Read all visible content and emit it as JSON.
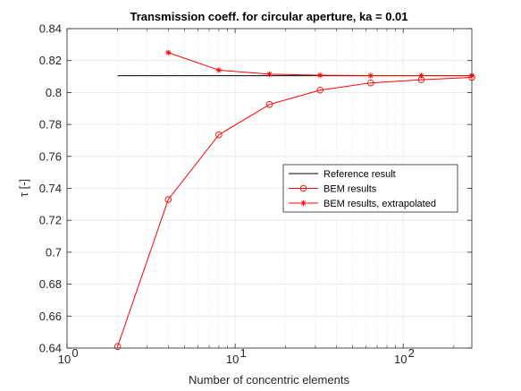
{
  "chart_data": {
    "type": "line",
    "title": "Transmission coeff. for circular aperture, ka = 0.01",
    "xlabel": "Number of concentric elements",
    "ylabel": "τ  [-]",
    "xscale": "log",
    "xlim": [
      1,
      256
    ],
    "ylim": [
      0.64,
      0.84
    ],
    "x_major_ticks": [
      {
        "base": "10",
        "exp": "0"
      },
      {
        "base": "10",
        "exp": "1"
      },
      {
        "base": "10",
        "exp": "2"
      }
    ],
    "y_ticks": [
      "0.64",
      "0.66",
      "0.68",
      "0.7",
      "0.72",
      "0.74",
      "0.76",
      "0.78",
      "0.8",
      "0.82",
      "0.84"
    ],
    "grid": true,
    "legend_position": "center-right",
    "series": [
      {
        "name": "Reference result",
        "color": "#000000",
        "marker": "none",
        "x": [
          2,
          256
        ],
        "y": [
          0.8105,
          0.8105
        ]
      },
      {
        "name": "BEM results",
        "color": "#ff0000",
        "marker": "circle",
        "x": [
          2,
          4,
          8,
          16,
          32,
          64,
          128,
          256
        ],
        "y": [
          0.641,
          0.733,
          0.7735,
          0.7925,
          0.8015,
          0.806,
          0.808,
          0.8095
        ]
      },
      {
        "name": "BEM results, extrapolated",
        "color": "#ff0000",
        "marker": "star",
        "x": [
          4,
          8,
          16,
          32,
          64,
          128,
          256
        ],
        "y": [
          0.825,
          0.814,
          0.8115,
          0.8108,
          0.8106,
          0.8106,
          0.8106
        ]
      }
    ]
  }
}
